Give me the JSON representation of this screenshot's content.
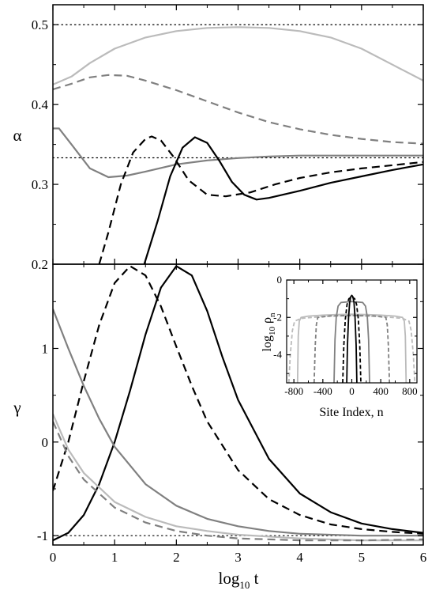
{
  "chart_data": [
    {
      "type": "line",
      "panel": "top",
      "xlabel": "log10 t",
      "ylabel": "α",
      "xlim": [
        0,
        6
      ],
      "ylim": [
        0.2,
        0.525
      ],
      "yticks": [
        0.2,
        0.3,
        0.4,
        0.5
      ],
      "ytick_labels": [
        "0.2",
        "0.3",
        "0.4",
        "0.5"
      ],
      "reference_lines": [
        0.5,
        0.3333
      ],
      "series": [
        {
          "color": "#bbbbbb",
          "dash": "solid",
          "x": [
            0,
            0.3,
            0.6,
            1.0,
            1.5,
            2.0,
            2.5,
            3.0,
            3.5,
            4.0,
            4.5,
            5.0,
            5.5,
            6.0
          ],
          "y": [
            0.425,
            0.435,
            0.452,
            0.47,
            0.484,
            0.492,
            0.496,
            0.497,
            0.496,
            0.492,
            0.484,
            0.47,
            0.45,
            0.43
          ]
        },
        {
          "color": "#808080",
          "dash": "dashed",
          "x": [
            0,
            0.3,
            0.6,
            0.9,
            1.2,
            1.5,
            2.0,
            2.5,
            3.0,
            3.5,
            4.0,
            4.5,
            5.0,
            5.5,
            6.0
          ],
          "y": [
            0.419,
            0.426,
            0.434,
            0.437,
            0.436,
            0.43,
            0.418,
            0.404,
            0.39,
            0.378,
            0.369,
            0.362,
            0.357,
            0.353,
            0.351
          ]
        },
        {
          "color": "#808080",
          "dash": "solid",
          "x": [
            0,
            0.1,
            0.3,
            0.6,
            0.9,
            1.2,
            1.5,
            2.0,
            2.5,
            3.0,
            3.5,
            4.0,
            5.0,
            6.0
          ],
          "y": [
            0.37,
            0.37,
            0.35,
            0.32,
            0.309,
            0.311,
            0.316,
            0.325,
            0.33,
            0.333,
            0.335,
            0.336,
            0.336,
            0.336
          ]
        },
        {
          "color": "#000000",
          "dash": "dashed",
          "x": [
            0.75,
            0.9,
            1.1,
            1.3,
            1.5,
            1.6,
            1.75,
            1.95,
            2.2,
            2.5,
            2.8,
            3.2,
            3.6,
            4.0,
            4.5,
            5.0,
            5.5,
            6.0
          ],
          "y": [
            0.2,
            0.24,
            0.3,
            0.34,
            0.357,
            0.36,
            0.355,
            0.335,
            0.305,
            0.287,
            0.285,
            0.29,
            0.3,
            0.308,
            0.315,
            0.32,
            0.324,
            0.328
          ]
        },
        {
          "color": "#000000",
          "dash": "solid",
          "x": [
            1.48,
            1.7,
            1.9,
            2.1,
            2.3,
            2.5,
            2.7,
            2.9,
            3.1,
            3.3,
            3.5,
            4.0,
            4.5,
            5.0,
            5.5,
            6.0
          ],
          "y": [
            0.2,
            0.255,
            0.31,
            0.346,
            0.359,
            0.352,
            0.329,
            0.303,
            0.287,
            0.281,
            0.283,
            0.292,
            0.302,
            0.31,
            0.318,
            0.325
          ]
        }
      ]
    },
    {
      "type": "line",
      "panel": "bottom",
      "xlabel": "log10 t",
      "ylabel": "γ",
      "xlim": [
        0,
        6
      ],
      "ylim": [
        -1.1,
        1.9
      ],
      "xticks": [
        0,
        1,
        2,
        3,
        4,
        5,
        6
      ],
      "xtick_labels": [
        "0",
        "1",
        "2",
        "3",
        "4",
        "5",
        "6"
      ],
      "yticks": [
        -1,
        0,
        1
      ],
      "ytick_labels": [
        "-1",
        "0",
        "1"
      ],
      "reference_lines": [
        -1
      ],
      "series": [
        {
          "color": "#000000",
          "dash": "solid",
          "x": [
            0,
            0.25,
            0.5,
            0.75,
            1.0,
            1.25,
            1.5,
            1.75,
            2.0,
            2.25,
            2.5,
            2.75,
            3.0,
            3.5,
            4.0,
            4.5,
            5.0,
            5.5,
            6.0
          ],
          "y": [
            -1.05,
            -0.97,
            -0.78,
            -0.45,
            0.0,
            0.55,
            1.15,
            1.65,
            1.88,
            1.78,
            1.4,
            0.9,
            0.45,
            -0.18,
            -0.55,
            -0.75,
            -0.87,
            -0.93,
            -0.97
          ]
        },
        {
          "color": "#000000",
          "dash": "dashed",
          "x": [
            0,
            0.25,
            0.5,
            0.75,
            1.0,
            1.25,
            1.5,
            1.75,
            2.0,
            2.25,
            2.5,
            3.0,
            3.5,
            4.0,
            4.5,
            5.0,
            5.5,
            6.0
          ],
          "y": [
            -0.52,
            0.0,
            0.65,
            1.25,
            1.7,
            1.88,
            1.78,
            1.45,
            1.02,
            0.6,
            0.22,
            -0.3,
            -0.61,
            -0.78,
            -0.88,
            -0.93,
            -0.96,
            -0.98
          ]
        },
        {
          "color": "#808080",
          "dash": "solid",
          "x": [
            0,
            0.25,
            0.5,
            0.75,
            1.0,
            1.5,
            2.0,
            2.5,
            3.0,
            3.5,
            4.0,
            5.0,
            6.0
          ],
          "y": [
            1.42,
            1.0,
            0.6,
            0.25,
            -0.05,
            -0.45,
            -0.68,
            -0.82,
            -0.9,
            -0.95,
            -0.98,
            -1.0,
            -1.0
          ]
        },
        {
          "color": "#bbbbbb",
          "dash": "solid",
          "x": [
            0,
            0.25,
            0.5,
            1.0,
            1.5,
            2.0,
            2.5,
            3.0,
            4.0,
            5.0,
            6.0
          ],
          "y": [
            0.3,
            -0.08,
            -0.33,
            -0.64,
            -0.8,
            -0.9,
            -0.95,
            -0.99,
            -1.03,
            -1.05,
            -1.05
          ]
        },
        {
          "color": "#808080",
          "dash": "dashed",
          "x": [
            0,
            0.25,
            0.5,
            1.0,
            1.5,
            2.0,
            2.5,
            3.0,
            4.0,
            5.0,
            6.0
          ],
          "y": [
            0.22,
            -0.15,
            -0.4,
            -0.7,
            -0.86,
            -0.95,
            -1.0,
            -1.03,
            -1.05,
            -1.05,
            -1.04
          ]
        }
      ]
    },
    {
      "type": "line",
      "panel": "inset",
      "xlabel": "Site Index, n",
      "ylabel": "log10 ρn",
      "xlim": [
        -900,
        900
      ],
      "ylim": [
        -5.5,
        0
      ],
      "xticks": [
        -800,
        -400,
        0,
        400,
        800
      ],
      "xtick_labels": [
        "-800",
        "-400",
        "0",
        "400",
        "800"
      ],
      "yticks": [
        0,
        -2,
        -4
      ],
      "ytick_labels": [
        "0",
        "-2",
        "-4"
      ],
      "series": [
        {
          "color": "#bbbbbb",
          "dash": "solid",
          "x": [
            -750,
            -740,
            -725,
            -700,
            -600,
            -400,
            -200,
            0,
            200,
            400,
            600,
            700,
            725,
            740,
            750
          ],
          "y": [
            -5.5,
            -3.0,
            -2.2,
            -2.0,
            -1.93,
            -1.88,
            -1.85,
            -1.83,
            -1.85,
            -1.88,
            -1.93,
            -2.0,
            -2.2,
            -3.0,
            -5.5
          ]
        },
        {
          "color": "#bbbbbb",
          "dash": "dashed",
          "x": [
            -870,
            -850,
            -820,
            -790,
            -700,
            -400,
            0,
            400,
            700,
            790,
            820,
            850,
            870
          ],
          "y": [
            -5.5,
            -4.0,
            -2.7,
            -2.2,
            -2.05,
            -1.95,
            -1.9,
            -1.95,
            -2.05,
            -2.2,
            -2.7,
            -4.0,
            -5.5
          ]
        },
        {
          "color": "#808080",
          "dash": "dashed",
          "x": [
            -520,
            -505,
            -490,
            -470,
            -300,
            0,
            300,
            470,
            490,
            505,
            520
          ],
          "y": [
            -5.5,
            -3.5,
            -2.4,
            -2.0,
            -1.92,
            -1.9,
            -1.92,
            -2.0,
            -2.4,
            -3.5,
            -5.5
          ]
        },
        {
          "color": "#808080",
          "dash": "solid",
          "x": [
            -245,
            -232,
            -215,
            -190,
            -150,
            0,
            150,
            190,
            215,
            232,
            245
          ],
          "y": [
            -5.5,
            -3.2,
            -2.0,
            -1.4,
            -1.2,
            -1.15,
            -1.2,
            -1.4,
            -2.0,
            -3.2,
            -5.5
          ]
        },
        {
          "color": "#000000",
          "dash": "dashed",
          "x": [
            -125,
            -110,
            -90,
            -65,
            -40,
            0,
            40,
            65,
            90,
            110,
            125
          ],
          "y": [
            -5.5,
            -3.5,
            -2.1,
            -1.3,
            -1.0,
            -0.9,
            -1.0,
            -1.3,
            -2.1,
            -3.5,
            -5.5
          ]
        },
        {
          "color": "#000000",
          "dash": "solid",
          "x": [
            -70,
            -60,
            -45,
            -30,
            -15,
            0,
            15,
            30,
            45,
            60,
            70
          ],
          "y": [
            -5.5,
            -3.5,
            -2.0,
            -1.2,
            -0.9,
            -0.82,
            -0.9,
            -1.2,
            -2.0,
            -3.5,
            -5.5
          ]
        }
      ]
    }
  ],
  "labels": {
    "alpha_symbol": "α",
    "gamma_symbol": "γ",
    "x_main": "log",
    "x_sub": "10",
    "x_var": " t",
    "inset_x": "Site Index, n",
    "inset_y_main": "log",
    "inset_y_sub": "10",
    "inset_y_var": " ρ",
    "inset_y_var_sub": "n"
  }
}
